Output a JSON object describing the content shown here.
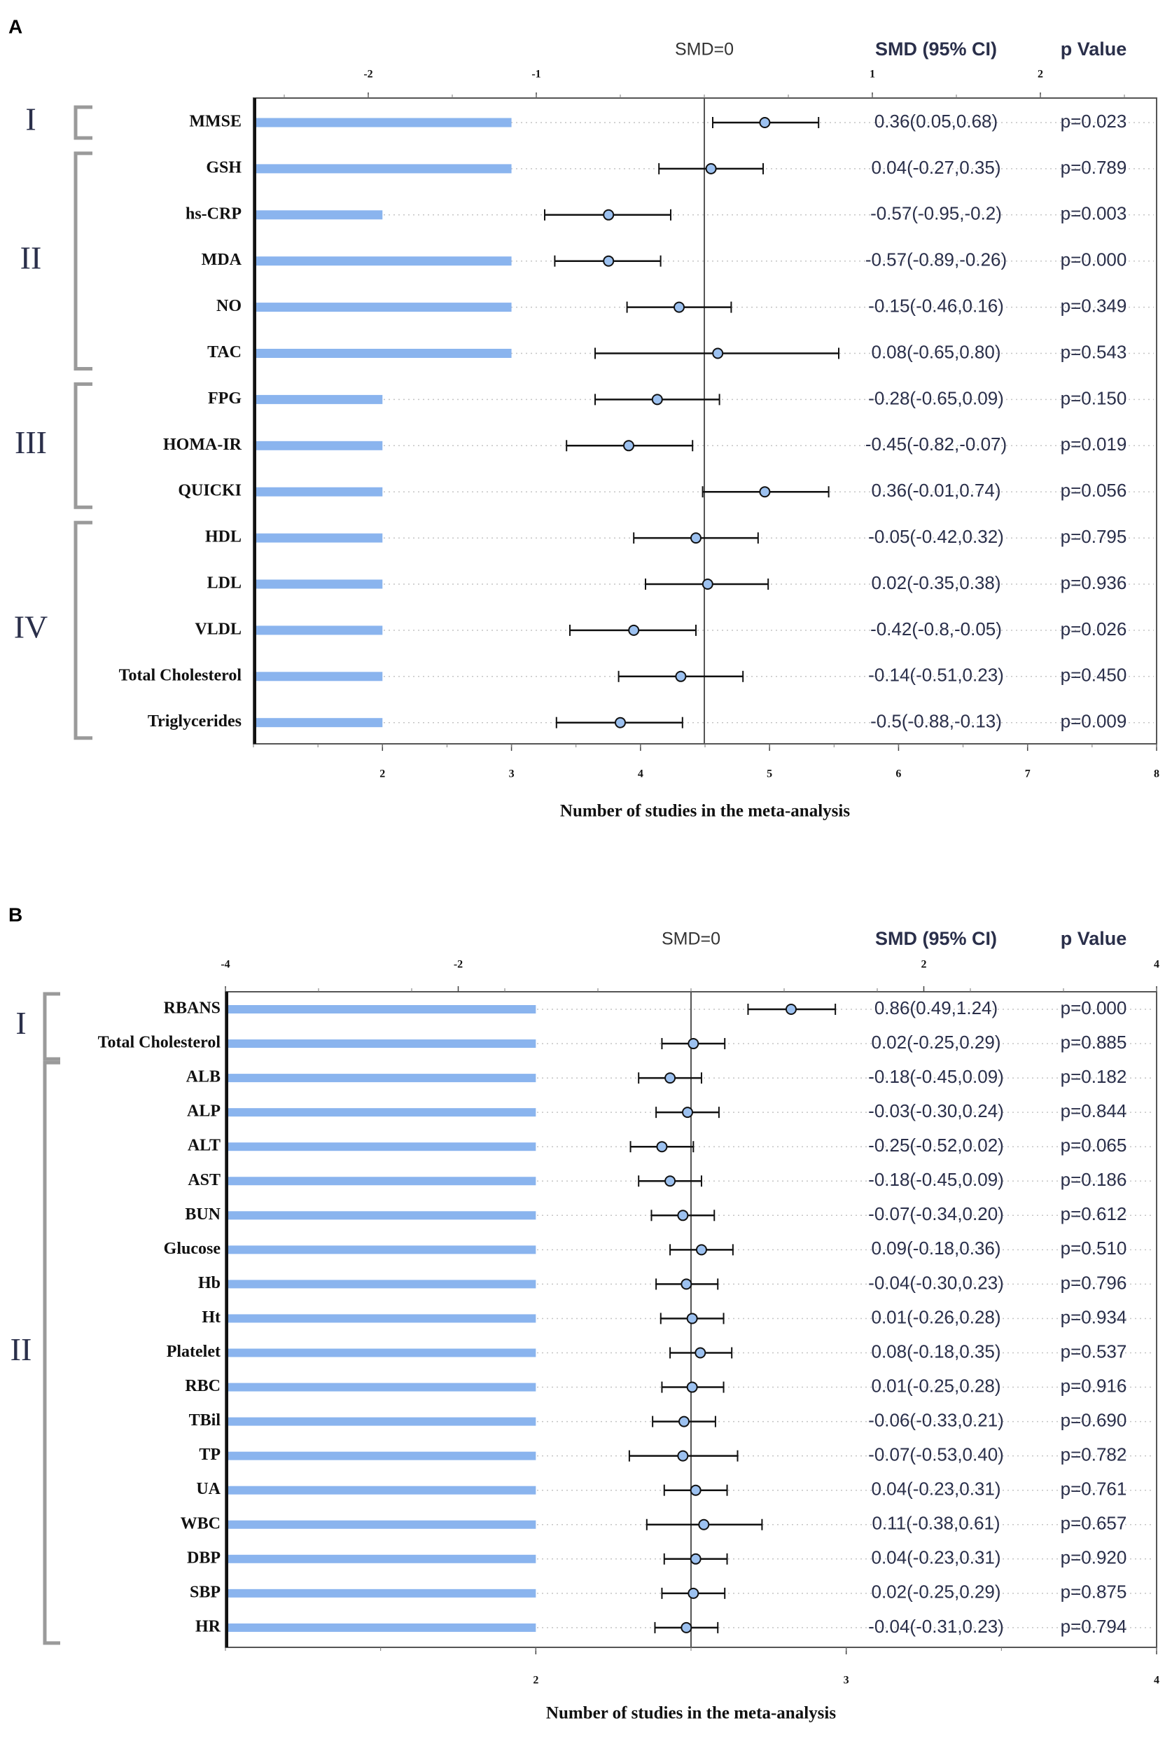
{
  "chart_data": [
    {
      "type": "bar",
      "panel_label": "A",
      "header": {
        "smd_zero": "SMD=0",
        "ci_header": "SMD (95% CI)",
        "p_header": "p Value"
      },
      "xlabel": "Number of studies in the meta-analysis",
      "bar_axis": {
        "range": [
          1,
          8
        ],
        "ticks": [
          2,
          3,
          4,
          5,
          6,
          7,
          8
        ]
      },
      "smd_axis": {
        "range": [
          -2.5,
          2.5
        ],
        "ticks": [
          -2,
          -1,
          1,
          2
        ]
      },
      "series": [
        {
          "name": "",
          "values": [
            3,
            3,
            2,
            3,
            3,
            3,
            2,
            2,
            2,
            2,
            2,
            2,
            2,
            2
          ]
        }
      ],
      "categories": [
        "MMSE",
        "GSH",
        "hs-CRP",
        "MDA",
        "NO",
        "TAC",
        "FPG",
        "HOMA-IR",
        "QUICKI",
        "HDL",
        "LDL",
        "VLDL",
        "Total Cholesterol",
        "Triglycerides"
      ],
      "smd": [
        0.36,
        0.04,
        -0.57,
        -0.57,
        -0.15,
        0.08,
        -0.28,
        -0.45,
        0.36,
        -0.05,
        0.02,
        -0.42,
        -0.14,
        -0.5
      ],
      "ci_low": [
        0.05,
        -0.27,
        -0.95,
        -0.89,
        -0.46,
        -0.65,
        -0.65,
        -0.82,
        -0.01,
        -0.42,
        -0.35,
        -0.8,
        -0.51,
        -0.88
      ],
      "ci_high": [
        0.68,
        0.35,
        -0.2,
        -0.26,
        0.16,
        0.8,
        0.09,
        -0.07,
        0.74,
        0.32,
        0.38,
        -0.05,
        0.23,
        -0.13
      ],
      "ci_text": [
        "0.36(0.05,0.68)",
        "0.04(-0.27,0.35)",
        "-0.57(-0.95,-0.2)",
        "-0.57(-0.89,-0.26)",
        "-0.15(-0.46,0.16)",
        "0.08(-0.65,0.80)",
        "-0.28(-0.65,0.09)",
        "-0.45(-0.82,-0.07)",
        "0.36(-0.01,0.74)",
        "-0.05(-0.42,0.32)",
        "0.02(-0.35,0.38)",
        "-0.42(-0.8,-0.05)",
        "-0.14(-0.51,0.23)",
        "-0.5(-0.88,-0.13)"
      ],
      "p_text": [
        "p=0.023",
        "p=0.789",
        "p=0.003",
        "p=0.000",
        "p=0.349",
        "p=0.543",
        "p=0.150",
        "p=0.019",
        "p=0.056",
        "p=0.795",
        "p=0.936",
        "p=0.026",
        "p=0.450",
        "p=0.009"
      ],
      "groups": [
        {
          "label": "I",
          "first": 0,
          "last": 0
        },
        {
          "label": "II",
          "first": 1,
          "last": 5
        },
        {
          "label": "III",
          "first": 6,
          "last": 8
        },
        {
          "label": "IV",
          "first": 9,
          "last": 13
        }
      ],
      "colors": {
        "bar": "#8ab4ee",
        "marker": "#9cc1f0",
        "ink": "#111111",
        "bracket": "#9a9a9a",
        "group_label": "#2a2f4a"
      }
    },
    {
      "type": "bar",
      "panel_label": "B",
      "header": {
        "smd_zero": "SMD=0",
        "ci_header": "SMD (95% CI)",
        "p_header": "p Value"
      },
      "xlabel": "Number of studies in the meta-analysis",
      "bar_axis": {
        "range": [
          1,
          4
        ],
        "ticks": [
          2,
          3,
          4
        ]
      },
      "smd_axis": {
        "range": [
          -4,
          4
        ],
        "ticks": [
          -4,
          -2,
          2,
          4
        ]
      },
      "series": [
        {
          "name": "",
          "values": [
            2,
            2,
            2,
            2,
            2,
            2,
            2,
            2,
            2,
            2,
            2,
            2,
            2,
            2,
            2,
            2,
            2,
            2,
            2
          ]
        }
      ],
      "categories": [
        "RBANS",
        "Total Cholesterol",
        "ALB",
        "ALP",
        "ALT",
        "AST",
        "BUN",
        "Glucose",
        "Hb",
        "Ht",
        "Platelet",
        "RBC",
        "TBil",
        "TP",
        "UA",
        "WBC",
        "DBP",
        "SBP",
        "HR"
      ],
      "smd": [
        0.86,
        0.02,
        -0.18,
        -0.03,
        -0.25,
        -0.18,
        -0.07,
        0.09,
        -0.04,
        0.01,
        0.08,
        0.01,
        -0.06,
        -0.07,
        0.04,
        0.11,
        0.04,
        0.02,
        -0.04
      ],
      "ci_low": [
        0.49,
        -0.25,
        -0.45,
        -0.3,
        -0.52,
        -0.45,
        -0.34,
        -0.18,
        -0.3,
        -0.26,
        -0.18,
        -0.25,
        -0.33,
        -0.53,
        -0.23,
        -0.38,
        -0.23,
        -0.25,
        -0.31
      ],
      "ci_high": [
        1.24,
        0.29,
        0.09,
        0.24,
        0.02,
        0.09,
        0.2,
        0.36,
        0.23,
        0.28,
        0.35,
        0.28,
        0.21,
        0.4,
        0.31,
        0.61,
        0.31,
        0.29,
        0.23
      ],
      "ci_text": [
        "0.86(0.49,1.24)",
        "0.02(-0.25,0.29)",
        "-0.18(-0.45,0.09)",
        "-0.03(-0.30,0.24)",
        "-0.25(-0.52,0.02)",
        "-0.18(-0.45,0.09)",
        "-0.07(-0.34,0.20)",
        "0.09(-0.18,0.36)",
        "-0.04(-0.30,0.23)",
        "0.01(-0.26,0.28)",
        "0.08(-0.18,0.35)",
        "0.01(-0.25,0.28)",
        "-0.06(-0.33,0.21)",
        "-0.07(-0.53,0.40)",
        "0.04(-0.23,0.31)",
        "0.11(-0.38,0.61)",
        "0.04(-0.23,0.31)",
        "0.02(-0.25,0.29)",
        "-0.04(-0.31,0.23)"
      ],
      "p_text": [
        "p=0.000",
        "p=0.885",
        "p=0.182",
        "p=0.844",
        "p=0.065",
        "p=0.186",
        "p=0.612",
        "p=0.510",
        "p=0.796",
        "p=0.934",
        "p=0.537",
        "p=0.916",
        "p=0.690",
        "p=0.782",
        "p=0.761",
        "p=0.657",
        "p=0.920",
        "p=0.875",
        "p=0.794"
      ],
      "groups": [
        {
          "label": "I",
          "first": 0,
          "last": 1
        },
        {
          "label": "II",
          "first": 2,
          "last": 18
        }
      ],
      "colors": {
        "bar": "#8ab4ee",
        "marker": "#9cc1f0",
        "ink": "#111111",
        "bracket": "#9a9a9a",
        "group_label": "#2a2f4a"
      }
    }
  ]
}
